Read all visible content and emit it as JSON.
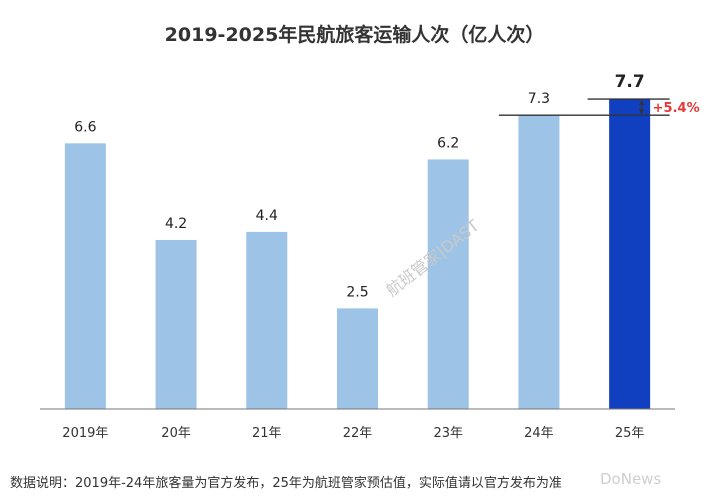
{
  "chart_data": {
    "type": "bar",
    "title": "2019-2025年民航旅客运输人次（亿人次）",
    "categories": [
      "2019年",
      "20年",
      "21年",
      "22年",
      "23年",
      "24年",
      "25年"
    ],
    "values": [
      6.6,
      4.2,
      4.4,
      2.5,
      6.2,
      7.3,
      7.7
    ],
    "data_labels": [
      "6.6",
      "4.2",
      "4.4",
      "2.5",
      "6.2",
      "7.3",
      "7.7"
    ],
    "ylim": [
      0,
      8
    ],
    "grid": false,
    "colors": {
      "default": "#9dc3e6",
      "highlight": "#1040c0",
      "annotation": "#e53935"
    },
    "highlight_index": 6,
    "annotation": {
      "label": "+5.4%",
      "from_index": 5,
      "to_index": 6
    }
  },
  "footnote": "数据说明：2019年-24年旅客量为官方发布，25年为航班管家预估值，实际值请以官方发布为准",
  "watermark": "航班管家|DAST",
  "logo_text": "DoNews"
}
